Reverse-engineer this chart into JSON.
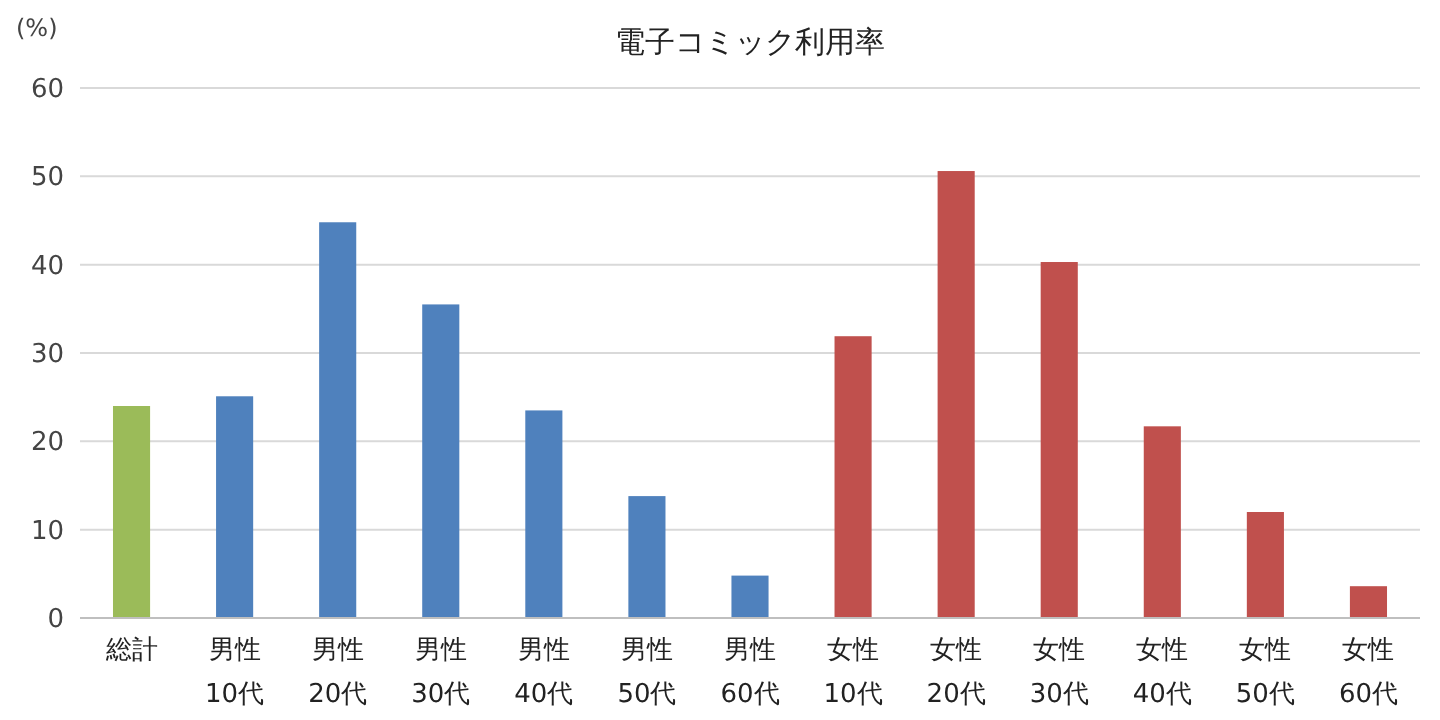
{
  "chart_data": {
    "type": "bar",
    "title": "電子コミック利用率",
    "ylabel": "(%)",
    "categories": [
      "総計",
      "男性\n10代",
      "男性\n20代",
      "男性\n30代",
      "男性\n40代",
      "男性\n50代",
      "男性\n60代",
      "女性\n10代",
      "女性\n20代",
      "女性\n30代",
      "女性\n40代",
      "女性\n50代",
      "女性\n60代"
    ],
    "values": [
      24.0,
      25.1,
      44.8,
      35.5,
      23.5,
      13.8,
      4.8,
      31.9,
      50.6,
      40.3,
      21.7,
      12.0,
      3.6
    ],
    "colors": [
      "#9bbb59",
      "#4f81bd",
      "#4f81bd",
      "#4f81bd",
      "#4f81bd",
      "#4f81bd",
      "#4f81bd",
      "#c0504d",
      "#c0504d",
      "#c0504d",
      "#c0504d",
      "#c0504d",
      "#c0504d"
    ],
    "ylim": [
      0,
      60
    ],
    "yticks": [
      0,
      10,
      20,
      30,
      40,
      50,
      60
    ],
    "grid": "y"
  }
}
